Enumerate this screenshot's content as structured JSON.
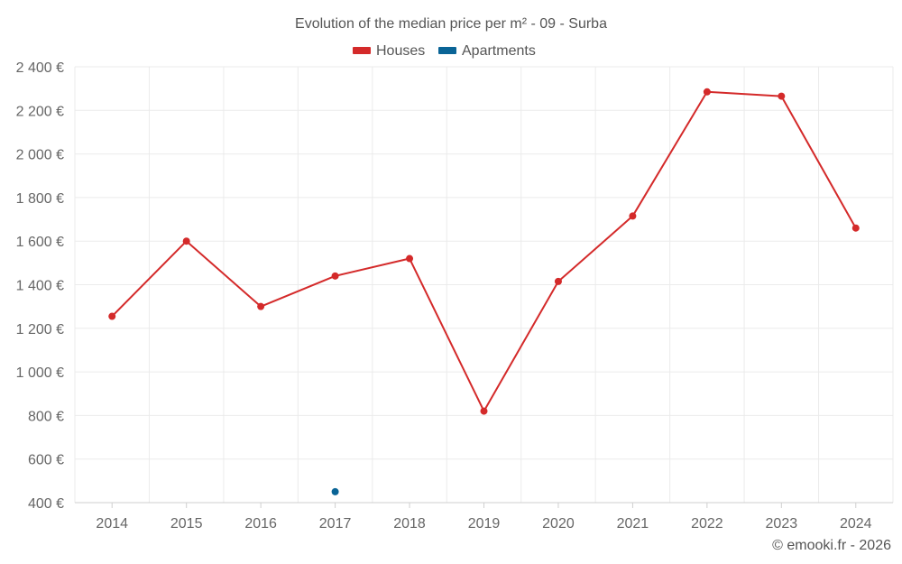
{
  "chart_data": {
    "type": "line",
    "title": "Evolution of the median price per m² - 09 - Surba",
    "categories": [
      "2014",
      "2015",
      "2016",
      "2017",
      "2018",
      "2019",
      "2020",
      "2021",
      "2022",
      "2023",
      "2024"
    ],
    "series": [
      {
        "name": "Houses",
        "color": "#d42a2a",
        "values": [
          1255,
          1600,
          1300,
          1440,
          1520,
          820,
          1415,
          1715,
          2285,
          2265,
          1660
        ]
      },
      {
        "name": "Apartments",
        "color": "#0a6496",
        "values": [
          null,
          null,
          null,
          450,
          null,
          null,
          null,
          null,
          null,
          null,
          null
        ]
      }
    ],
    "yticks": [
      "400 €",
      "600 €",
      "800 €",
      "1 000 €",
      "1 200 €",
      "1 400 €",
      "1 600 €",
      "1 800 €",
      "2 000 €",
      "2 200 €",
      "2 400 €"
    ],
    "yvalues": [
      400,
      600,
      800,
      1000,
      1200,
      1400,
      1600,
      1800,
      2000,
      2200,
      2400
    ],
    "ylim": [
      400,
      2400
    ],
    "xlabel": "",
    "ylabel": "",
    "grid": true,
    "legend_position": "top-center"
  },
  "credit": "© emooki.fr - 2026"
}
